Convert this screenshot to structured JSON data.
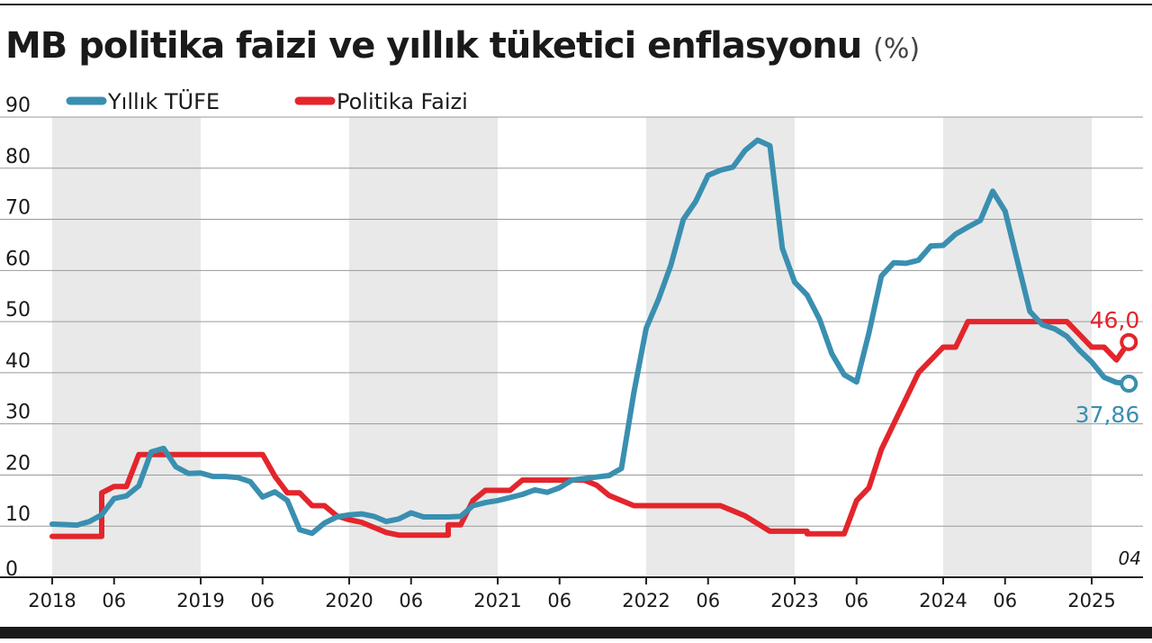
{
  "title": "MB politika faizi ve yıllık tüketici enflasyonu",
  "title_unit": "(%)",
  "note": "04",
  "colors": {
    "tufe": "#3a8fb0",
    "faiz": "#e3252c",
    "band": "#e9e9e9"
  },
  "chart_data": {
    "type": "line",
    "title": "MB politika faizi ve yıllık tüketici enflasyonu (%)",
    "ylim": [
      0,
      90
    ],
    "yticks": [
      0,
      10,
      20,
      30,
      40,
      50,
      60,
      70,
      80,
      90
    ],
    "xlim": [
      "2018-01",
      "2025-04"
    ],
    "xticks": [
      {
        "label": "2018",
        "date": "2018-01"
      },
      {
        "label": "06",
        "date": "2018-06"
      },
      {
        "label": "2019",
        "date": "2019-01"
      },
      {
        "label": "06",
        "date": "2019-06"
      },
      {
        "label": "2020",
        "date": "2020-01"
      },
      {
        "label": "06",
        "date": "2020-06"
      },
      {
        "label": "2021",
        "date": "2021-01"
      },
      {
        "label": "06",
        "date": "2021-06"
      },
      {
        "label": "2022",
        "date": "2022-01"
      },
      {
        "label": "06",
        "date": "2022-06"
      },
      {
        "label": "2023",
        "date": "2023-01"
      },
      {
        "label": "06",
        "date": "2023-06"
      },
      {
        "label": "2024",
        "date": "2024-01"
      },
      {
        "label": "06",
        "date": "2024-06"
      },
      {
        "label": "2025",
        "date": "2025-01"
      }
    ],
    "shaded_years": [
      2018,
      2020,
      2022,
      2024
    ],
    "grid": true,
    "legend": "top-left",
    "series": [
      {
        "name": "Yıllık TÜFE",
        "key": "tufe",
        "end_label": "37,86",
        "points": [
          [
            "2018-01",
            10.4
          ],
          [
            "2018-02",
            10.3
          ],
          [
            "2018-03",
            10.2
          ],
          [
            "2018-04",
            10.9
          ],
          [
            "2018-05",
            12.2
          ],
          [
            "2018-06",
            15.4
          ],
          [
            "2018-07",
            15.9
          ],
          [
            "2018-08",
            17.9
          ],
          [
            "2018-09",
            24.5
          ],
          [
            "2018-10",
            25.2
          ],
          [
            "2018-11",
            21.6
          ],
          [
            "2018-12",
            20.3
          ],
          [
            "2019-01",
            20.4
          ],
          [
            "2019-02",
            19.7
          ],
          [
            "2019-03",
            19.7
          ],
          [
            "2019-04",
            19.5
          ],
          [
            "2019-05",
            18.7
          ],
          [
            "2019-06",
            15.7
          ],
          [
            "2019-07",
            16.7
          ],
          [
            "2019-08",
            15.0
          ],
          [
            "2019-09",
            9.3
          ],
          [
            "2019-10",
            8.6
          ],
          [
            "2019-11",
            10.6
          ],
          [
            "2019-12",
            11.8
          ],
          [
            "2020-01",
            12.2
          ],
          [
            "2020-02",
            12.4
          ],
          [
            "2020-03",
            11.9
          ],
          [
            "2020-04",
            10.9
          ],
          [
            "2020-05",
            11.4
          ],
          [
            "2020-06",
            12.6
          ],
          [
            "2020-07",
            11.8
          ],
          [
            "2020-08",
            11.8
          ],
          [
            "2020-09",
            11.8
          ],
          [
            "2020-10",
            11.9
          ],
          [
            "2020-11",
            14.0
          ],
          [
            "2020-12",
            14.6
          ],
          [
            "2021-01",
            15.0
          ],
          [
            "2021-02",
            15.6
          ],
          [
            "2021-03",
            16.2
          ],
          [
            "2021-04",
            17.1
          ],
          [
            "2021-05",
            16.6
          ],
          [
            "2021-06",
            17.5
          ],
          [
            "2021-07",
            19.0
          ],
          [
            "2021-08",
            19.3
          ],
          [
            "2021-09",
            19.6
          ],
          [
            "2021-10",
            19.9
          ],
          [
            "2021-11",
            21.3
          ],
          [
            "2021-12",
            36.1
          ],
          [
            "2022-01",
            48.7
          ],
          [
            "2022-02",
            54.4
          ],
          [
            "2022-03",
            61.1
          ],
          [
            "2022-04",
            70.0
          ],
          [
            "2022-05",
            73.5
          ],
          [
            "2022-06",
            78.6
          ],
          [
            "2022-07",
            79.6
          ],
          [
            "2022-08",
            80.2
          ],
          [
            "2022-09",
            83.5
          ],
          [
            "2022-10",
            85.5
          ],
          [
            "2022-11",
            84.4
          ],
          [
            "2022-12",
            64.3
          ],
          [
            "2023-01",
            57.7
          ],
          [
            "2023-02",
            55.2
          ],
          [
            "2023-03",
            50.5
          ],
          [
            "2023-04",
            43.7
          ],
          [
            "2023-05",
            39.6
          ],
          [
            "2023-06",
            38.2
          ],
          [
            "2023-07",
            47.8
          ],
          [
            "2023-08",
            58.9
          ],
          [
            "2023-09",
            61.5
          ],
          [
            "2023-10",
            61.4
          ],
          [
            "2023-11",
            62.0
          ],
          [
            "2023-12",
            64.8
          ],
          [
            "2024-01",
            64.9
          ],
          [
            "2024-02",
            67.1
          ],
          [
            "2024-03",
            68.5
          ],
          [
            "2024-04",
            69.8
          ],
          [
            "2024-05",
            75.5
          ],
          [
            "2024-06",
            71.6
          ],
          [
            "2024-07",
            61.8
          ],
          [
            "2024-08",
            52.0
          ],
          [
            "2024-09",
            49.4
          ],
          [
            "2024-10",
            48.6
          ],
          [
            "2024-11",
            47.1
          ],
          [
            "2024-12",
            44.4
          ],
          [
            "2025-01",
            42.1
          ],
          [
            "2025-02",
            39.1
          ],
          [
            "2025-03",
            38.1
          ],
          [
            "2025-04",
            37.86
          ]
        ]
      },
      {
        "name": "Politika Faizi",
        "key": "faiz",
        "end_label": "46,0",
        "points": [
          [
            "2018-01",
            8.0
          ],
          [
            "2018-05",
            8.0
          ],
          [
            "2018-05",
            16.5
          ],
          [
            "2018-06",
            17.75
          ],
          [
            "2018-07",
            17.75
          ],
          [
            "2018-08",
            24.0
          ],
          [
            "2019-06",
            24.0
          ],
          [
            "2019-07",
            19.75
          ],
          [
            "2019-08",
            16.5
          ],
          [
            "2019-09",
            16.5
          ],
          [
            "2019-10",
            14.0
          ],
          [
            "2019-11",
            14.0
          ],
          [
            "2019-12",
            12.0
          ],
          [
            "2020-01",
            11.25
          ],
          [
            "2020-02",
            10.75
          ],
          [
            "2020-03",
            9.75
          ],
          [
            "2020-04",
            8.75
          ],
          [
            "2020-05",
            8.25
          ],
          [
            "2020-09",
            8.25
          ],
          [
            "2020-09",
            10.25
          ],
          [
            "2020-10",
            10.25
          ],
          [
            "2020-11",
            15.0
          ],
          [
            "2020-12",
            17.0
          ],
          [
            "2021-02",
            17.0
          ],
          [
            "2021-03",
            19.0
          ],
          [
            "2021-08",
            19.0
          ],
          [
            "2021-09",
            18.0
          ],
          [
            "2021-10",
            16.0
          ],
          [
            "2021-11",
            15.0
          ],
          [
            "2021-12",
            14.0
          ],
          [
            "2022-07",
            14.0
          ],
          [
            "2022-08",
            13.0
          ],
          [
            "2022-09",
            12.0
          ],
          [
            "2022-10",
            10.5
          ],
          [
            "2022-11",
            9.0
          ],
          [
            "2023-02",
            9.0
          ],
          [
            "2023-02",
            8.5
          ],
          [
            "2023-05",
            8.5
          ],
          [
            "2023-06",
            15.0
          ],
          [
            "2023-07",
            17.5
          ],
          [
            "2023-08",
            25.0
          ],
          [
            "2023-09",
            30.0
          ],
          [
            "2023-10",
            35.0
          ],
          [
            "2023-11",
            40.0
          ],
          [
            "2023-12",
            42.5
          ],
          [
            "2024-01",
            45.0
          ],
          [
            "2024-02",
            45.0
          ],
          [
            "2024-03",
            50.0
          ],
          [
            "2024-11",
            50.0
          ],
          [
            "2024-12",
            47.5
          ],
          [
            "2025-01",
            45.0
          ],
          [
            "2025-02",
            45.0
          ],
          [
            "2025-03",
            42.5
          ],
          [
            "2025-04",
            46.0
          ]
        ]
      }
    ]
  }
}
